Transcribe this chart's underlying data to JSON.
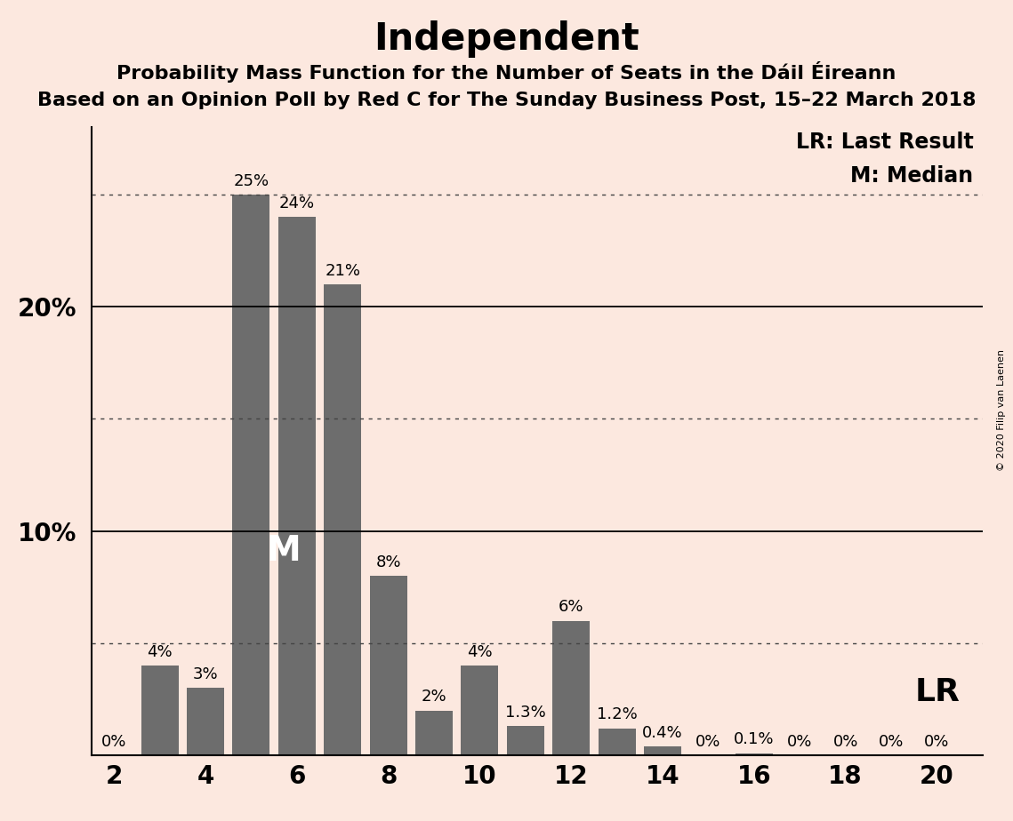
{
  "title": "Independent",
  "subtitle1": "Probability Mass Function for the Number of Seats in the Dáil Éireann",
  "subtitle2": "Based on an Opinion Poll by Red C for The Sunday Business Post, 15–22 March 2018",
  "copyright": "© 2020 Filip van Laenen",
  "seats": [
    2,
    3,
    4,
    5,
    6,
    7,
    8,
    9,
    10,
    11,
    12,
    13,
    14,
    15,
    16,
    17,
    18,
    19,
    20
  ],
  "values": [
    0.0,
    4.0,
    3.0,
    25.0,
    24.0,
    21.0,
    8.0,
    2.0,
    4.0,
    1.3,
    6.0,
    1.2,
    0.4,
    0.0,
    0.1,
    0.0,
    0.0,
    0.0,
    0.0
  ],
  "labels": [
    "0%",
    "4%",
    "3%",
    "25%",
    "24%",
    "21%",
    "8%",
    "2%",
    "4%",
    "1.3%",
    "6%",
    "1.2%",
    "0.4%",
    "0%",
    "0.1%",
    "0%",
    "0%",
    "0%",
    "0%"
  ],
  "bar_color": "#6d6d6d",
  "background_color": "#fce8df",
  "median_seat": 6,
  "lr_value": 5.0,
  "legend_lr": "LR: Last Result",
  "legend_m": "M: Median",
  "solid_yticks": [
    10,
    20
  ],
  "dotted_yticks": [
    5,
    15,
    25
  ],
  "ylim": [
    0,
    28
  ],
  "xlim": [
    1.5,
    21.0
  ],
  "xticks": [
    2,
    4,
    6,
    8,
    10,
    12,
    14,
    16,
    18,
    20
  ],
  "title_fontsize": 30,
  "subtitle_fontsize": 16,
  "axis_fontsize": 20,
  "bar_label_fontsize": 13,
  "legend_fontsize": 17,
  "M_fontsize": 28,
  "LR_fontsize": 26,
  "copyright_fontsize": 8
}
